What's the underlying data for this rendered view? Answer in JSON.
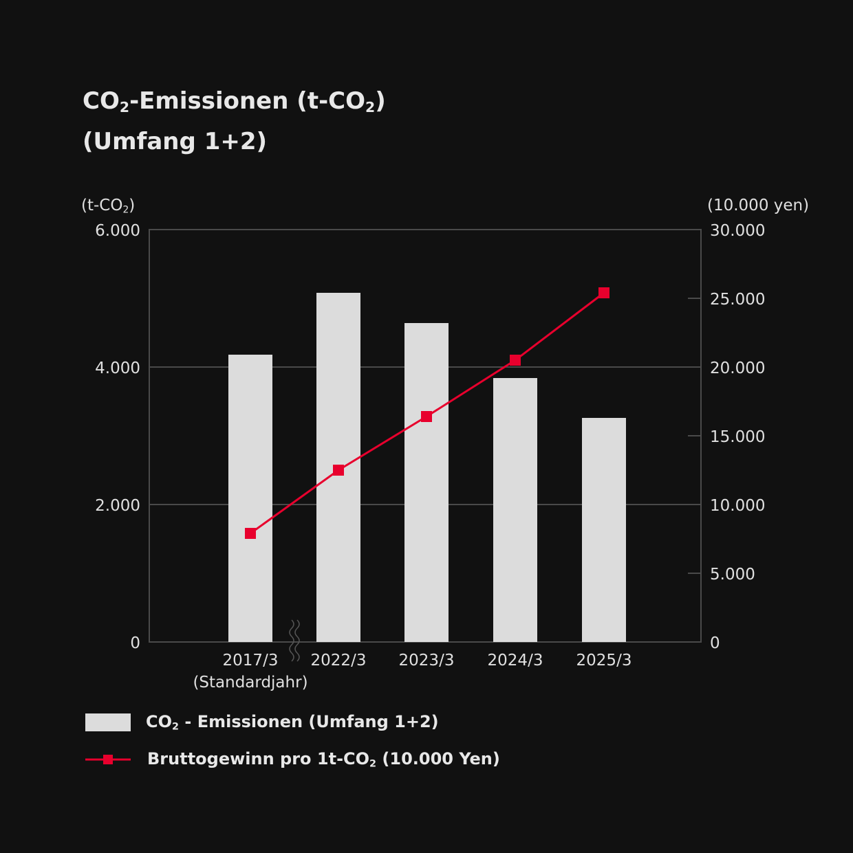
{
  "title": {
    "line1_a": "CO",
    "line1_sub": "2",
    "line1_b": "-Emissionen (t-CO",
    "line1_sub2": "2",
    "line1_c": ")",
    "line2": "(Umfang 1+2)"
  },
  "chart_data": {
    "type": "bar+line",
    "categories": [
      "2017/3",
      "2022/3",
      "2023/3",
      "2024/3",
      "2025/3"
    ],
    "category_sublabels": [
      "(Standardjahr)",
      "",
      "",
      "",
      ""
    ],
    "axis_break_after": "2017/3",
    "left_axis": {
      "unit_a": "(t-CO",
      "unit_sub": "2",
      "unit_b": ")",
      "ylim": [
        0,
        6000
      ],
      "ticks": [
        0,
        2000,
        4000,
        6000
      ],
      "tick_labels": [
        "0",
        "2.000",
        "4.000",
        "6.000"
      ]
    },
    "right_axis": {
      "unit": "(10.000 yen)",
      "ylim": [
        0,
        30000
      ],
      "ticks": [
        0,
        5000,
        10000,
        15000,
        20000,
        25000,
        30000
      ],
      "tick_labels": [
        "0",
        "5.000",
        "10.000",
        "15.000",
        "20.000",
        "25.000",
        "30.000"
      ]
    },
    "series": [
      {
        "name": "CO2 - Emissionen (Umfang 1+2)",
        "type": "bar",
        "axis": "left",
        "color": "#dcdcdc",
        "values": [
          4180,
          5080,
          4640,
          3840,
          3260
        ]
      },
      {
        "name": "Bruttogewinn pro 1t-CO2 (10.000 Yen)",
        "type": "line",
        "axis": "right",
        "color": "#e8002d",
        "values": [
          7900,
          12500,
          16400,
          20500,
          25400
        ]
      }
    ],
    "grid": true,
    "legend_position": "bottom-left"
  },
  "legend": {
    "bar_a": "CO",
    "bar_sub": "2",
    "bar_b": " - Emissionen (Umfang 1+2)",
    "line_a": "Bruttogewinn pro 1t-CO",
    "line_sub": "2",
    "line_b": " (10.000 Yen)"
  }
}
